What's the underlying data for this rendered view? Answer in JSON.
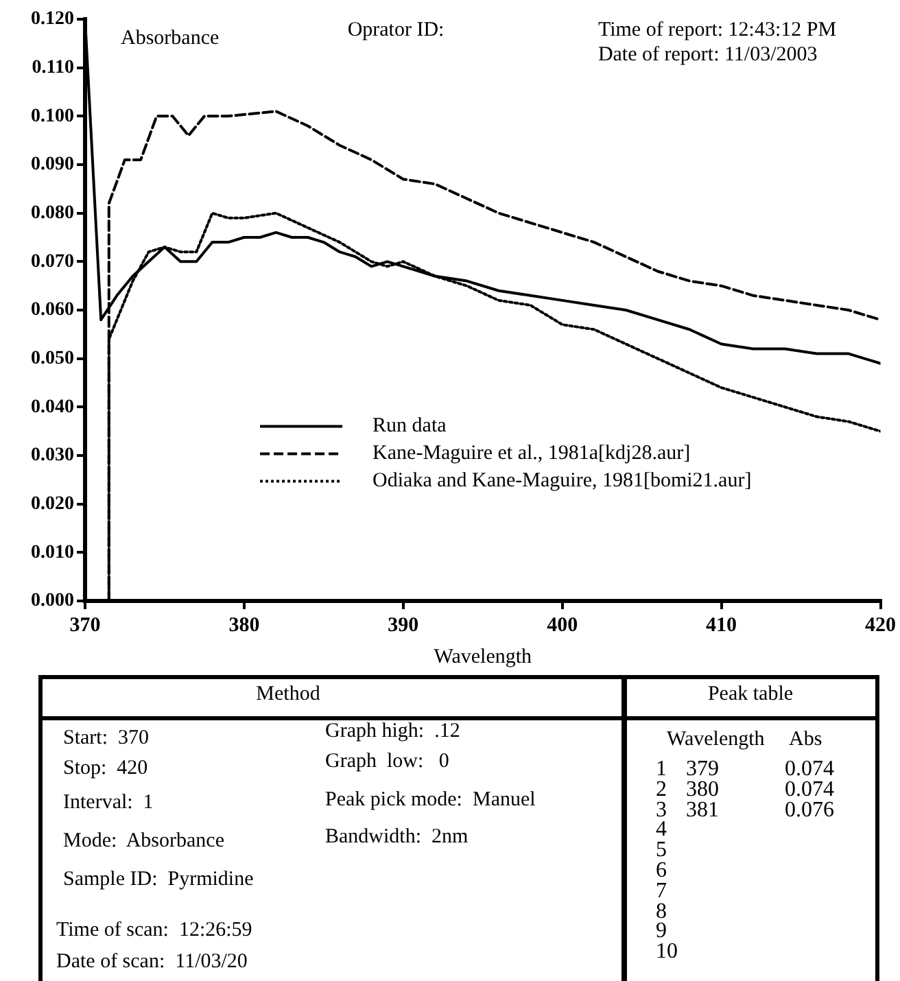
{
  "chart_data": {
    "type": "line",
    "xlabel": "Wavelength",
    "ylabel": "Absorbance",
    "xlim": [
      370,
      420
    ],
    "xticks": [
      370,
      380,
      390,
      400,
      410,
      420
    ],
    "ylim": [
      0,
      0.12
    ],
    "yticks": [
      {
        "value": 0,
        "label": "0.000"
      },
      {
        "value": 0.01,
        "label": "0.010"
      },
      {
        "value": 0.02,
        "label": "0.020"
      },
      {
        "value": 0.03,
        "label": "0.030"
      },
      {
        "value": 0.04,
        "label": "0.040"
      },
      {
        "value": 0.05,
        "label": "0.050"
      },
      {
        "value": 0.06,
        "label": "0.060"
      },
      {
        "value": 0.07,
        "label": "0.070"
      },
      {
        "value": 0.08,
        "label": "0.080"
      },
      {
        "value": 0.09,
        "label": "0.090"
      },
      {
        "value": 0.1,
        "label": "0.100"
      },
      {
        "value": 0.11,
        "label": "0.110"
      },
      {
        "value": 0.12,
        "label": "0.120"
      }
    ],
    "grid": false,
    "legend": "bottom right",
    "marker": "none",
    "series": [
      {
        "name": "Run data",
        "color": "#000000",
        "line_style": "solid",
        "x": [
          370,
          371,
          372,
          373,
          374,
          375,
          376,
          377,
          378,
          379,
          380,
          381,
          382,
          383,
          384,
          385,
          386,
          387,
          388,
          389,
          390,
          392,
          394,
          396,
          398,
          400,
          402,
          404,
          406,
          408,
          410,
          412,
          414,
          416,
          418,
          420
        ],
        "values": [
          0.12,
          0.058,
          0.063,
          0.067,
          0.07,
          0.073,
          0.07,
          0.07,
          0.074,
          0.074,
          0.075,
          0.075,
          0.076,
          0.075,
          0.075,
          0.074,
          0.072,
          0.071,
          0.069,
          0.07,
          0.069,
          0.067,
          0.066,
          0.064,
          0.063,
          0.062,
          0.061,
          0.06,
          0.058,
          0.056,
          0.053,
          0.052,
          0.052,
          0.051,
          0.051,
          0.049
        ]
      },
      {
        "name": "Kane-Maguire et al., 1981a[kdj28.aur]",
        "color": "#000000",
        "line_style": "dashed",
        "x": [
          371.5,
          371.5,
          372.5,
          373.5,
          374.5,
          375.5,
          376.5,
          377.5,
          379,
          382,
          384,
          386,
          388,
          390,
          392,
          394,
          396,
          398,
          400,
          402,
          404,
          406,
          408,
          410,
          412,
          414,
          416,
          418,
          420
        ],
        "values": [
          0,
          0.082,
          0.091,
          0.091,
          0.1,
          0.1,
          0.096,
          0.1,
          0.1,
          0.101,
          0.098,
          0.094,
          0.091,
          0.087,
          0.086,
          0.083,
          0.08,
          0.078,
          0.076,
          0.074,
          0.071,
          0.068,
          0.066,
          0.065,
          0.063,
          0.062,
          0.061,
          0.06,
          0.058
        ]
      },
      {
        "name": "Odiaka and Kane-Maguire, 1981[bomi21.aur]",
        "color": "#000000",
        "line_style": "dotted",
        "x": [
          371.5,
          371.5,
          373,
          374,
          375,
          376,
          377,
          378,
          379,
          380,
          382,
          384,
          386,
          388,
          389,
          390,
          392,
          394,
          396,
          398,
          400,
          402,
          404,
          406,
          408,
          410,
          412,
          414,
          416,
          418,
          420
        ],
        "values": [
          0,
          0.054,
          0.066,
          0.072,
          0.073,
          0.072,
          0.072,
          0.08,
          0.079,
          0.079,
          0.08,
          0.077,
          0.074,
          0.07,
          0.069,
          0.07,
          0.067,
          0.065,
          0.062,
          0.061,
          0.057,
          0.056,
          0.053,
          0.05,
          0.047,
          0.044,
          0.042,
          0.04,
          0.038,
          0.037,
          0.035
        ]
      }
    ],
    "annotations": [
      "Oprator ID:",
      "Time of report: 12:43:12 PM",
      "Date of report: 11/03/2003",
      "Method",
      "Start:  370",
      "Stop:  420",
      "Interval:  1",
      "Mode:  Absorbance",
      "Sample ID:  Pyrmidine",
      "Time of scan:  12:26:59",
      "Date of scan:  11/03/20",
      "Graph high:  .12",
      "Graph  low:   0",
      "Peak pick mode:  Manuel",
      "Bandwidth:  2nm",
      "Peak table",
      "Wavelength",
      "Abs",
      "1",
      "379",
      "0.074",
      "2",
      "380",
      "0.074",
      "3",
      "381",
      "0.076",
      "4",
      "5",
      "6",
      "7",
      "8",
      "9",
      "10"
    ]
  }
}
